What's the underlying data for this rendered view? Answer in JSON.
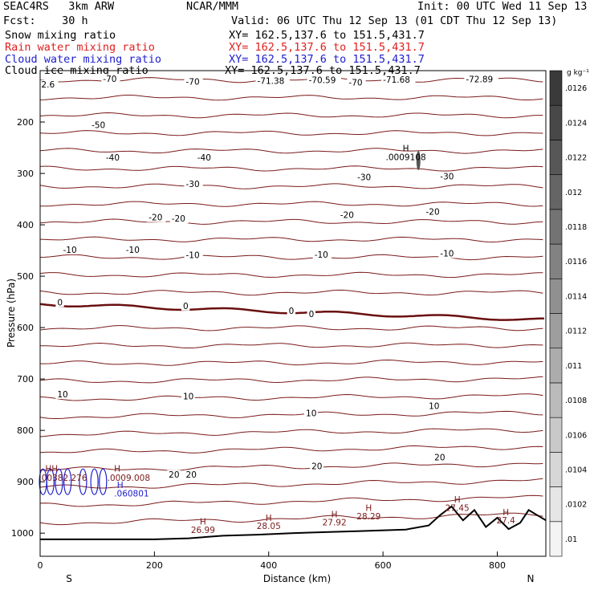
{
  "header": {
    "model": "SEAC4RS   3km ARW",
    "center": "NCAR/MMM",
    "init": "Init: 00 UTC Wed 11 Sep 13",
    "fcst": "Fcst:    30 h",
    "valid": "Valid: 06 UTC Thu 12 Sep 13 (01 CDT Thu 12 Sep 13)"
  },
  "fields": [
    {
      "name": "Snow mixing ratio",
      "xy": "XY= 162.5,137.6 to 151.5,431.7",
      "color": "#000000"
    },
    {
      "name": "Rain water mixing ratio",
      "xy": "XY= 162.5,137.6 to 151.5,431.7",
      "color": "#e02020"
    },
    {
      "name": "Cloud water mixing ratio",
      "xy": "XY= 162.5,137.6 to 151.5,431.7",
      "color": "#2020d0"
    },
    {
      "name": "Cloud ice mixing ratio",
      "xy": "XY= 162.5,137.6 to 151.5,431.7",
      "color": "#000000"
    }
  ],
  "chart_data": {
    "type": "contour cross-section",
    "xlabel": "Distance (km)",
    "ylabel": "Pressure (hPa)",
    "x_ticks": [
      0,
      200,
      400,
      600,
      800
    ],
    "y_ticks": [
      200,
      300,
      400,
      500,
      600,
      700,
      800,
      900,
      1000
    ],
    "xlim": [
      0,
      885
    ],
    "ylim": [
      1045,
      100
    ],
    "end_labels": {
      "left": "S",
      "right": "N"
    },
    "colorbar": {
      "unit": "g kg⁻¹",
      "ticks": [
        ".01",
        ".0102",
        ".0104",
        ".0106",
        ".0108",
        ".011",
        ".0112",
        ".0114",
        ".0116",
        ".0118",
        ".012",
        ".0122",
        ".0124",
        ".0126"
      ],
      "color_low": "#f4f4f4",
      "color_high": "#3a3a3a"
    },
    "temperature_contour_color": "#7a1a1a",
    "temperature_labels": [
      {
        "x": 2,
        "p": 131,
        "text": "2.6"
      },
      {
        "x": 110,
        "p": 120,
        "text": "-70"
      },
      {
        "x": 255,
        "p": 126,
        "text": "-70"
      },
      {
        "x": 380,
        "p": 124,
        "text": "-71.38"
      },
      {
        "x": 470,
        "p": 123,
        "text": "-70.59"
      },
      {
        "x": 540,
        "p": 127,
        "text": "-70"
      },
      {
        "x": 600,
        "p": 122,
        "text": "-71.68"
      },
      {
        "x": 745,
        "p": 121,
        "text": "-72.89"
      },
      {
        "x": 90,
        "p": 210,
        "text": "-50"
      },
      {
        "x": 115,
        "p": 273,
        "text": "-40"
      },
      {
        "x": 275,
        "p": 273,
        "text": "-40"
      },
      {
        "x": 255,
        "p": 325,
        "text": "-30"
      },
      {
        "x": 555,
        "p": 312,
        "text": "-30"
      },
      {
        "x": 700,
        "p": 310,
        "text": "-30"
      },
      {
        "x": 190,
        "p": 390,
        "text": "-20"
      },
      {
        "x": 230,
        "p": 392,
        "text": "-20"
      },
      {
        "x": 525,
        "p": 385,
        "text": "-20"
      },
      {
        "x": 675,
        "p": 379,
        "text": "-20"
      },
      {
        "x": 40,
        "p": 453,
        "text": "-10"
      },
      {
        "x": 150,
        "p": 453,
        "text": "-10"
      },
      {
        "x": 255,
        "p": 463,
        "text": "-10"
      },
      {
        "x": 480,
        "p": 462,
        "text": "-10"
      },
      {
        "x": 700,
        "p": 460,
        "text": "-10"
      },
      {
        "x": 30,
        "p": 555,
        "text": "0"
      },
      {
        "x": 250,
        "p": 562,
        "text": "0"
      },
      {
        "x": 435,
        "p": 572,
        "text": "0"
      },
      {
        "x": 470,
        "p": 578,
        "text": "0"
      },
      {
        "x": 30,
        "p": 734,
        "text": "10"
      },
      {
        "x": 250,
        "p": 738,
        "text": "10"
      },
      {
        "x": 465,
        "p": 771,
        "text": "10"
      },
      {
        "x": 680,
        "p": 757,
        "text": "10"
      },
      {
        "x": 225,
        "p": 890,
        "text": "20"
      },
      {
        "x": 255,
        "p": 890,
        "text": "20"
      },
      {
        "x": 475,
        "p": 874,
        "text": "20"
      },
      {
        "x": 690,
        "p": 857,
        "text": "20"
      }
    ],
    "max_labels": [
      {
        "x": 640,
        "p": 257,
        "text": "H",
        "color": "#000000"
      },
      {
        "x": 640,
        "p": 274,
        "text": ".0009108",
        "color": "#000000"
      },
      {
        "x": 20,
        "p": 880,
        "text": "HH",
        "color": "#7a1a1a"
      },
      {
        "x": 40,
        "p": 898,
        "text": ".00382.276",
        "color": "#7a1a1a"
      },
      {
        "x": 135,
        "p": 880,
        "text": "H",
        "color": "#7a1a1a"
      },
      {
        "x": 155,
        "p": 898,
        "text": ".0009.008",
        "color": "#7a1a1a"
      },
      {
        "x": 140,
        "p": 912,
        "text": "H",
        "color": "#2020d0"
      },
      {
        "x": 160,
        "p": 929,
        "text": ".060801",
        "color": "#2020d0"
      },
      {
        "x": 285,
        "p": 983,
        "text": "H",
        "color": "#7a1a1a"
      },
      {
        "x": 285,
        "p": 1000,
        "text": "26.99",
        "color": "#7a1a1a"
      },
      {
        "x": 400,
        "p": 976,
        "text": "H",
        "color": "#7a1a1a"
      },
      {
        "x": 400,
        "p": 992,
        "text": "28.05",
        "color": "#7a1a1a"
      },
      {
        "x": 515,
        "p": 969,
        "text": "H",
        "color": "#7a1a1a"
      },
      {
        "x": 515,
        "p": 985,
        "text": "27.92",
        "color": "#7a1a1a"
      },
      {
        "x": 575,
        "p": 957,
        "text": "H",
        "color": "#7a1a1a"
      },
      {
        "x": 575,
        "p": 973,
        "text": "28.29",
        "color": "#7a1a1a"
      },
      {
        "x": 730,
        "p": 940,
        "text": "H",
        "color": "#7a1a1a"
      },
      {
        "x": 730,
        "p": 957,
        "text": "27.45",
        "color": "#7a1a1a"
      },
      {
        "x": 815,
        "p": 965,
        "text": "H",
        "color": "#7a1a1a"
      },
      {
        "x": 815,
        "p": 981,
        "text": "27.4",
        "color": "#7a1a1a"
      }
    ]
  }
}
